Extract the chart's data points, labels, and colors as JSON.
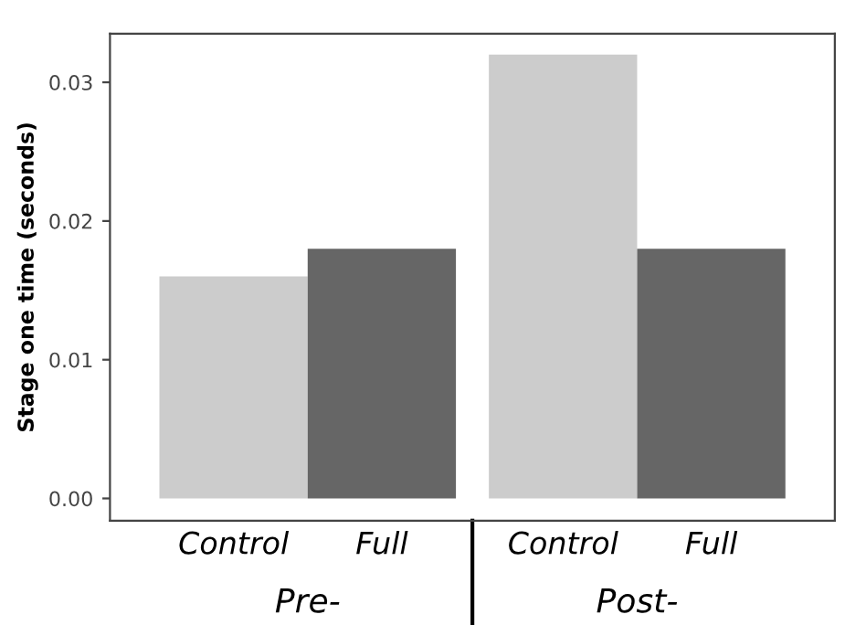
{
  "chart_data": {
    "type": "bar",
    "ylabel": "Stage one time (seconds)",
    "categories": [
      "Control",
      "Full",
      "Control",
      "Full"
    ],
    "values": [
      0.016,
      0.018,
      0.032,
      0.018
    ],
    "colors": [
      "#cccccc",
      "#666666",
      "#cccccc",
      "#666666"
    ],
    "ylim": [
      -0.0016,
      0.0335
    ],
    "yticks": [
      {
        "value": 0,
        "label": "0.00"
      },
      {
        "value": 0.01,
        "label": "0.01"
      },
      {
        "value": 0.02,
        "label": "0.02"
      },
      {
        "value": 0.03,
        "label": "0.03"
      }
    ],
    "annotations": [
      "Pre-",
      "Post-"
    ],
    "grid": false,
    "legend": false
  }
}
